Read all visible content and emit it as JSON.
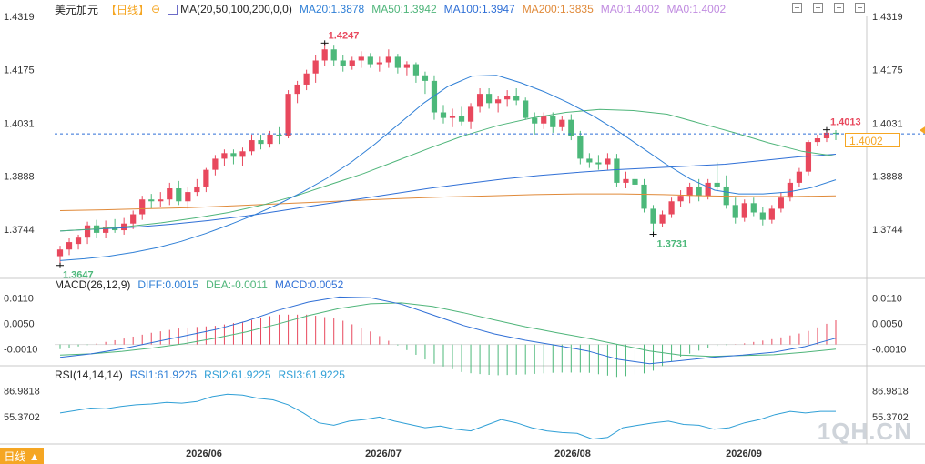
{
  "header": {
    "symbol": "美元加元",
    "period": "【日线】",
    "ma_label": "MA(20,50,100,200,0,0)",
    "ma20": "MA20:1.3878",
    "ma50": "MA50:1.3942",
    "ma100": "MA100:1.3947",
    "ma200": "MA200:1.3835",
    "ma0a": "MA0:1.4002",
    "ma0b": "MA0:1.4002"
  },
  "macd_header": {
    "label": "MACD(26,12,9)",
    "diff": "DIFF:0.0015",
    "dea": "DEA:-0.0011",
    "macd": "MACD:0.0052"
  },
  "rsi_header": {
    "label": "RSI(14,14,14)",
    "rsi1": "RSI1:61.9225",
    "rsi2": "RSI2:61.9225",
    "rsi3": "RSI3:61.9225"
  },
  "current_price_tag": "1.4002",
  "period_tab": "日线 ▲",
  "watermark": "1QH.CN",
  "colors": {
    "up": "#e8485d",
    "down": "#4cb87a",
    "ma20": "#2f7fd6",
    "ma50": "#4fb57a",
    "ma100": "#2f6fd6",
    "ma200": "#e08a3a",
    "ma0": "#c08be0"
  },
  "chart_data": {
    "type": "candlestick",
    "x_ticks": [
      "2026/06",
      "2026/07",
      "2026/08",
      "2026/09"
    ],
    "price_ticks": [
      "1.4319",
      "1.4175",
      "1.4031",
      "1.3888",
      "1.3744"
    ],
    "price_range": [
      1.3612,
      1.4319
    ],
    "annotations": {
      "high": "1.4247",
      "low_start": "1.3647",
      "low_mid": "1.3731",
      "last_high": "1.4013"
    },
    "dashed_level": 1.4002,
    "ohlc": [
      [
        1.3672,
        1.37,
        1.3647,
        1.369
      ],
      [
        1.369,
        1.372,
        1.3675,
        1.371
      ],
      [
        1.3705,
        1.373,
        1.369,
        1.3722
      ],
      [
        1.3722,
        1.3765,
        1.3705,
        1.3755
      ],
      [
        1.3755,
        1.377,
        1.372,
        1.3735
      ],
      [
        1.3735,
        1.3768,
        1.372,
        1.375
      ],
      [
        1.375,
        1.3772,
        1.3735,
        1.3742
      ],
      [
        1.3742,
        1.3775,
        1.373,
        1.376
      ],
      [
        1.376,
        1.3795,
        1.3745,
        1.3785
      ],
      [
        1.3785,
        1.3835,
        1.377,
        1.3825
      ],
      [
        1.3825,
        1.384,
        1.38,
        1.382
      ],
      [
        1.382,
        1.3845,
        1.3805,
        1.3825
      ],
      [
        1.3825,
        1.387,
        1.381,
        1.3855
      ],
      [
        1.3855,
        1.3875,
        1.381,
        1.382
      ],
      [
        1.382,
        1.386,
        1.38,
        1.3845
      ],
      [
        1.3845,
        1.388,
        1.3835,
        1.386
      ],
      [
        1.386,
        1.391,
        1.3845,
        1.3905
      ],
      [
        1.3905,
        1.3945,
        1.389,
        1.3935
      ],
      [
        1.3935,
        1.396,
        1.3915,
        1.395
      ],
      [
        1.395,
        1.396,
        1.392,
        1.394
      ],
      [
        1.394,
        1.3965,
        1.3915,
        1.3955
      ],
      [
        1.3955,
        1.4,
        1.3945,
        1.3985
      ],
      [
        1.3985,
        1.4,
        1.396,
        1.3975
      ],
      [
        1.3975,
        1.401,
        1.3965,
        1.4
      ],
      [
        1.4,
        1.402,
        1.3975,
        1.3995
      ],
      [
        1.3995,
        1.412,
        1.399,
        1.411
      ],
      [
        1.411,
        1.4145,
        1.4085,
        1.4135
      ],
      [
        1.4135,
        1.4175,
        1.412,
        1.4165
      ],
      [
        1.4165,
        1.4215,
        1.414,
        1.42
      ],
      [
        1.42,
        1.4247,
        1.4185,
        1.423
      ],
      [
        1.423,
        1.424,
        1.4185,
        1.42
      ],
      [
        1.42,
        1.4215,
        1.417,
        1.4185
      ],
      [
        1.4185,
        1.421,
        1.4175,
        1.42
      ],
      [
        1.42,
        1.4225,
        1.418,
        1.421
      ],
      [
        1.421,
        1.422,
        1.418,
        1.419
      ],
      [
        1.419,
        1.421,
        1.417,
        1.4195
      ],
      [
        1.4195,
        1.423,
        1.418,
        1.421
      ],
      [
        1.421,
        1.4218,
        1.4165,
        1.418
      ],
      [
        1.418,
        1.4198,
        1.416,
        1.419
      ],
      [
        1.419,
        1.4195,
        1.414,
        1.416
      ],
      [
        1.416,
        1.417,
        1.411,
        1.4145
      ],
      [
        1.4145,
        1.416,
        1.404,
        1.406
      ],
      [
        1.406,
        1.408,
        1.403,
        1.4045
      ],
      [
        1.4045,
        1.407,
        1.402,
        1.405
      ],
      [
        1.405,
        1.4075,
        1.4025,
        1.4035
      ],
      [
        1.4035,
        1.4085,
        1.4015,
        1.4075
      ],
      [
        1.4075,
        1.4125,
        1.406,
        1.411
      ],
      [
        1.411,
        1.4125,
        1.407,
        1.4085
      ],
      [
        1.4085,
        1.4105,
        1.406,
        1.4095
      ],
      [
        1.4095,
        1.412,
        1.4075,
        1.4105
      ],
      [
        1.4105,
        1.4125,
        1.408,
        1.4092
      ],
      [
        1.4092,
        1.41,
        1.404,
        1.4045
      ],
      [
        1.4045,
        1.406,
        1.4,
        1.403
      ],
      [
        1.403,
        1.406,
        1.4015,
        1.405
      ],
      [
        1.405,
        1.406,
        1.4005,
        1.402
      ],
      [
        1.402,
        1.405,
        1.401,
        1.404
      ],
      [
        1.404,
        1.4055,
        1.3985,
        1.3995
      ],
      [
        1.3995,
        1.401,
        1.392,
        1.3935
      ],
      [
        1.3935,
        1.395,
        1.391,
        1.3925
      ],
      [
        1.3925,
        1.3945,
        1.3905,
        1.392
      ],
      [
        1.392,
        1.395,
        1.3905,
        1.3935
      ],
      [
        1.3935,
        1.3948,
        1.386,
        1.387
      ],
      [
        1.387,
        1.39,
        1.3855,
        1.388
      ],
      [
        1.388,
        1.39,
        1.3855,
        1.3865
      ],
      [
        1.3865,
        1.388,
        1.379,
        1.38
      ],
      [
        1.38,
        1.381,
        1.3731,
        1.376
      ],
      [
        1.376,
        1.3795,
        1.375,
        1.3785
      ],
      [
        1.3785,
        1.383,
        1.3775,
        1.382
      ],
      [
        1.382,
        1.385,
        1.3805,
        1.3835
      ],
      [
        1.3835,
        1.387,
        1.3815,
        1.386
      ],
      [
        1.386,
        1.388,
        1.382,
        1.3835
      ],
      [
        1.3835,
        1.388,
        1.3825,
        1.387
      ],
      [
        1.387,
        1.3925,
        1.385,
        1.386
      ],
      [
        1.386,
        1.389,
        1.38,
        1.381
      ],
      [
        1.381,
        1.383,
        1.376,
        1.3775
      ],
      [
        1.3775,
        1.3825,
        1.3765,
        1.3815
      ],
      [
        1.3815,
        1.383,
        1.378,
        1.379
      ],
      [
        1.379,
        1.3805,
        1.3755,
        1.377
      ],
      [
        1.377,
        1.381,
        1.376,
        1.38
      ],
      [
        1.38,
        1.3845,
        1.379,
        1.383
      ],
      [
        1.383,
        1.388,
        1.382,
        1.387
      ],
      [
        1.387,
        1.391,
        1.386,
        1.39
      ],
      [
        1.39,
        1.3985,
        1.389,
        1.398
      ],
      [
        1.398,
        1.4,
        1.397,
        1.399
      ],
      [
        1.399,
        1.4013,
        1.398,
        1.4005
      ],
      [
        1.4005,
        1.4012,
        1.3985,
        1.4002
      ]
    ],
    "ma": {
      "ma20": [
        1.366,
        1.3665,
        1.3672,
        1.3682,
        1.3695,
        1.3712,
        1.3733,
        1.3757,
        1.3783,
        1.3812,
        1.3845,
        1.3882,
        1.3925,
        1.3975,
        1.403,
        1.4085,
        1.413,
        1.4158,
        1.416,
        1.414,
        1.4115,
        1.4085,
        1.405,
        1.401,
        1.3965,
        1.392,
        1.388,
        1.385,
        1.384,
        1.384,
        1.3845,
        1.3857,
        1.3878
      ],
      "ma50": [
        1.374,
        1.3745,
        1.3752,
        1.3762,
        1.3775,
        1.379,
        1.381,
        1.3835,
        1.3865,
        1.3895,
        1.393,
        1.3965,
        1.3998,
        1.4025,
        1.4045,
        1.406,
        1.4068,
        1.4065,
        1.4055,
        1.403,
        1.4005,
        1.3978,
        1.3955,
        1.3942
      ],
      "ma100": [
        1.374,
        1.3745,
        1.375,
        1.3758,
        1.3768,
        1.378,
        1.3795,
        1.381,
        1.3825,
        1.384,
        1.3855,
        1.3868,
        1.388,
        1.389,
        1.3898,
        1.3905,
        1.391,
        1.3915,
        1.392,
        1.393,
        1.394,
        1.3947
      ],
      "ma200": [
        1.3795,
        1.3797,
        1.38,
        1.3803,
        1.3808,
        1.3813,
        1.3818,
        1.3823,
        1.3828,
        1.3832,
        1.3835,
        1.3838,
        1.384,
        1.384,
        1.3838,
        1.3835,
        1.3833,
        1.3833,
        1.3835
      ]
    },
    "macd_ticks": [
      "0.0110",
      "0.0050",
      "-0.0010"
    ],
    "macd_range": [
      -0.005,
      0.013
    ],
    "diff": [
      -0.003,
      -0.0022,
      -0.001,
      0.0005,
      0.002,
      0.0035,
      0.0055,
      0.008,
      0.01,
      0.0112,
      0.011,
      0.0095,
      0.007,
      0.0045,
      0.0025,
      0.001,
      -0.0002,
      -0.0015,
      -0.0035,
      -0.0045,
      -0.0038,
      -0.003,
      -0.0025,
      -0.0018,
      -0.0005,
      0.0015
    ],
    "dea": [
      -0.0025,
      -0.0022,
      -0.0016,
      -0.0008,
      0.0002,
      0.0015,
      0.003,
      0.0048,
      0.0068,
      0.0085,
      0.0096,
      0.0098,
      0.009,
      0.0075,
      0.0058,
      0.0042,
      0.0028,
      0.0015,
      0.0,
      -0.0015,
      -0.0025,
      -0.0028,
      -0.0026,
      -0.0024,
      -0.0018,
      -0.0011
    ],
    "rsi_ticks": [
      "86.9818",
      "55.3702"
    ],
    "rsi_range": [
      22,
      100
    ],
    "rsi": [
      60,
      63,
      66,
      65,
      68,
      70,
      71,
      73,
      72,
      74,
      80,
      83,
      82,
      78,
      76,
      70,
      60,
      48,
      45,
      50,
      52,
      55,
      50,
      46,
      42,
      44,
      40,
      38,
      45,
      52,
      48,
      42,
      38,
      36,
      35,
      28,
      30,
      42,
      45,
      48,
      50,
      46,
      45,
      40,
      42,
      48,
      52,
      58,
      62,
      60,
      62,
      62
    ]
  }
}
